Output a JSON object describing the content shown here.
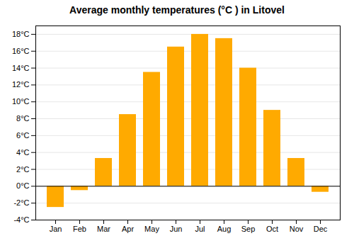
{
  "chart_data": {
    "type": "bar",
    "title": "Average monthly temperatures (°C ) in Litovel",
    "categories": [
      "Jan",
      "Feb",
      "Mar",
      "Apr",
      "May",
      "Jun",
      "Jul",
      "Aug",
      "Sep",
      "Oct",
      "Nov",
      "Dec"
    ],
    "values": [
      -2.5,
      -0.5,
      3.3,
      8.5,
      13.5,
      16.5,
      18.0,
      17.5,
      14.0,
      9.0,
      3.3,
      -0.7
    ],
    "color": "#FFAA00",
    "ylim": [
      -4,
      19
    ],
    "yticks": [
      {
        "value": -4,
        "label": "-4°C"
      },
      {
        "value": -2,
        "label": "-2°C"
      },
      {
        "value": 0,
        "label": "0°C"
      },
      {
        "value": 2,
        "label": "2°C"
      },
      {
        "value": 4,
        "label": "4°C"
      },
      {
        "value": 6,
        "label": "6°C"
      },
      {
        "value": 8,
        "label": "8°C"
      },
      {
        "value": 10,
        "label": "10°C"
      },
      {
        "value": 12,
        "label": "12°C"
      },
      {
        "value": 14,
        "label": "14°C"
      },
      {
        "value": 16,
        "label": "16°C"
      },
      {
        "value": 18,
        "label": "18°C"
      }
    ],
    "grid": true
  }
}
